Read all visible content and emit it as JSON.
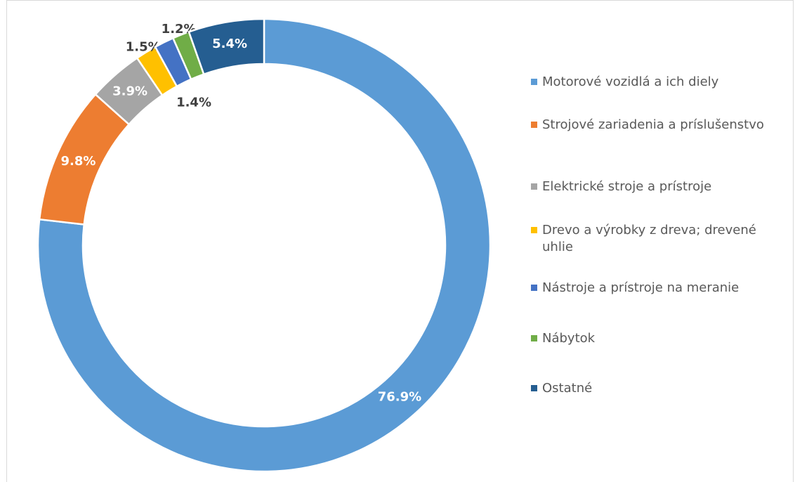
{
  "chart_data": {
    "type": "donut",
    "categories": [
      "Motorové vozidlá a ich diely",
      "Strojové zariadenia a príslušenstvo",
      "Elektrické stroje a prístroje",
      "Drevo a výrobky z dreva; drevené uhlie",
      "Nástroje a prístroje na meranie",
      "Nábytok",
      "Ostatné"
    ],
    "values": [
      76.9,
      9.8,
      3.9,
      1.5,
      1.4,
      1.2,
      5.4
    ],
    "value_labels": [
      "76.9%",
      "9.8%",
      "3.9%",
      "1.5%",
      "1.4%",
      "1.2%",
      "5.4%"
    ],
    "colors": [
      "#5b9bd5",
      "#ed7d31",
      "#a5a5a5",
      "#ffc000",
      "#4472c4",
      "#70ad47",
      "#255e91"
    ],
    "legend": "right"
  }
}
